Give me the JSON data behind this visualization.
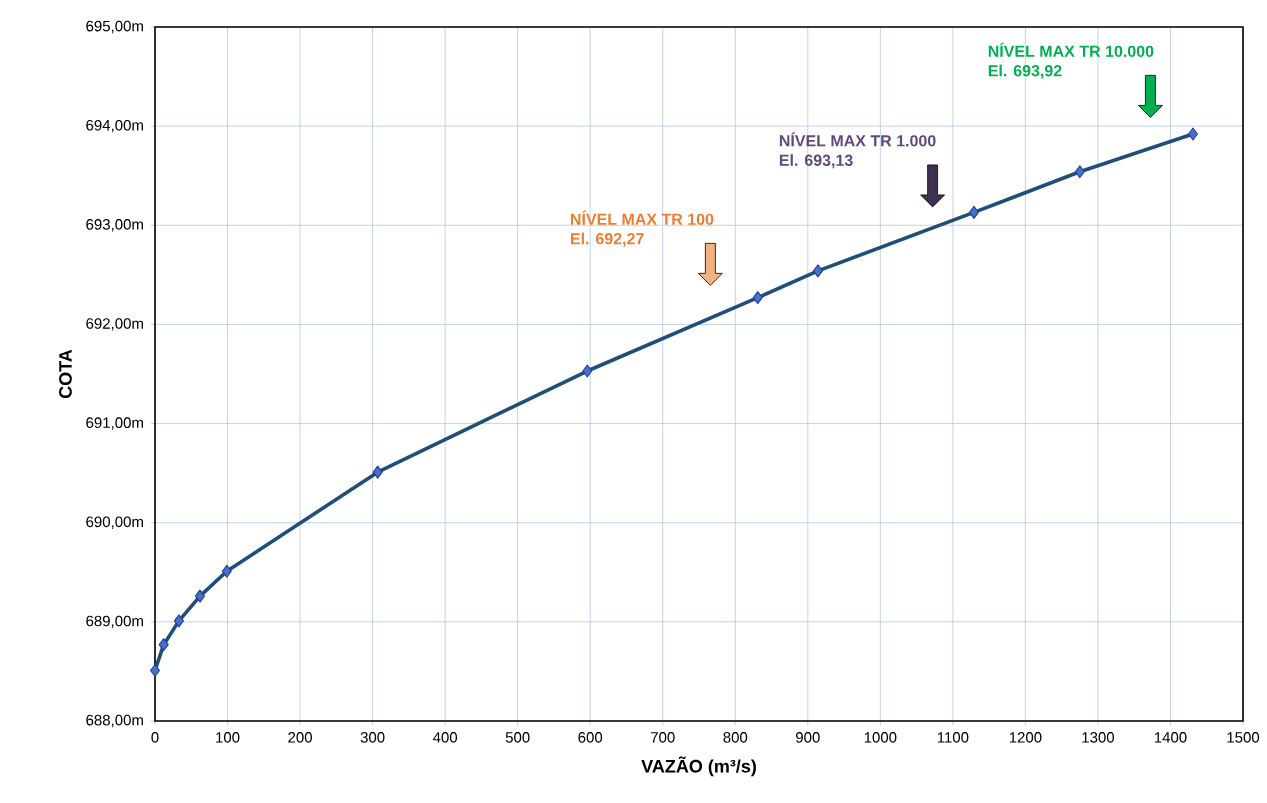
{
  "chart_data": {
    "type": "line",
    "xlabel": "VAZÃO (m³/s)",
    "ylabel": "COTA",
    "x": [
      0,
      12,
      33,
      62,
      99,
      307,
      596,
      831,
      914,
      1129,
      1275,
      1431
    ],
    "series": [
      {
        "color": "#1f4e79",
        "values": [
          688.51,
          688.77,
          689.01,
          689.26,
          689.51,
          690.51,
          691.53,
          692.27,
          692.54,
          693.13,
          693.54,
          693.92
        ]
      }
    ],
    "marker": "diamond",
    "grid": true,
    "xlim": [
      0,
      1500
    ],
    "xticks": [
      0,
      100,
      200,
      300,
      400,
      500,
      600,
      700,
      800,
      900,
      1000,
      1100,
      1200,
      1300,
      1400,
      1500
    ],
    "ylim": [
      688,
      695
    ],
    "yticks": [
      {
        "value": 688,
        "label": "688,00m"
      },
      {
        "value": 689,
        "label": "689,00m"
      },
      {
        "value": 690,
        "label": "690,00m"
      },
      {
        "value": 691,
        "label": "691,00m"
      },
      {
        "value": 692,
        "label": "692,00m"
      },
      {
        "value": 693,
        "label": "693,00m"
      },
      {
        "value": 694,
        "label": "694,00m"
      },
      {
        "value": 695,
        "label": "695,00m"
      }
    ],
    "annotations": [
      "NÍVEL MAX TR 100",
      "El. 692,27",
      "NÍVEL MAX TR 1.000",
      "El. 693,13",
      "NÍVEL MAX TR 10.000",
      "El. 693,92"
    ]
  }
}
